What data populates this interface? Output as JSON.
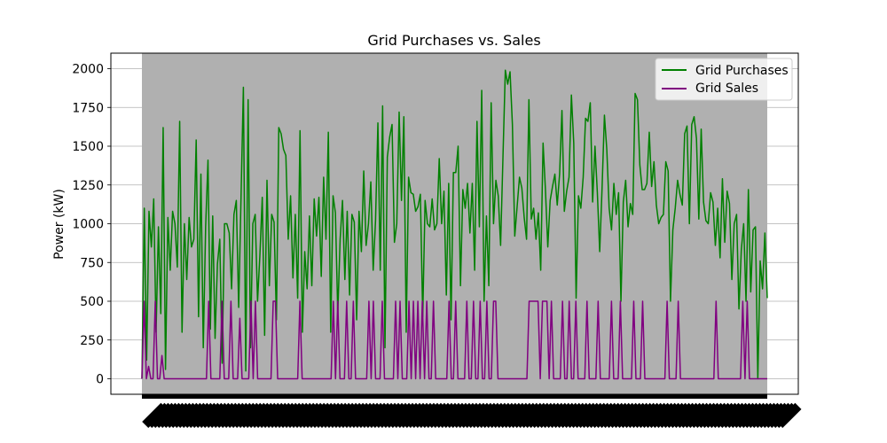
{
  "chart_data": {
    "type": "line",
    "title": "Grid Purchases vs. Sales",
    "xlabel": "",
    "ylabel": "Power (kW)",
    "ylim": [
      -100,
      2100
    ],
    "yticks": [
      0,
      250,
      500,
      750,
      1000,
      1250,
      1500,
      1750,
      2000
    ],
    "grid": true,
    "grid_axis": "y",
    "legend_position": "top-right",
    "x_ticks_dense": true,
    "series": [
      {
        "name": "Grid Purchases",
        "color": "#008000",
        "values": [
          0,
          1100,
          120,
          1080,
          850,
          1160,
          300,
          980,
          420,
          1620,
          60,
          1040,
          700,
          1080,
          1000,
          720,
          1660,
          300,
          1000,
          640,
          1040,
          850,
          900,
          1540,
          400,
          1320,
          200,
          980,
          1410,
          320,
          1050,
          260,
          740,
          900,
          100,
          1000,
          1000,
          940,
          580,
          1060,
          1150,
          460,
          1170,
          1880,
          50,
          1800,
          200,
          1000,
          1060,
          500,
          800,
          1170,
          280,
          1280,
          600,
          1060,
          1010,
          380,
          1620,
          1580,
          1480,
          1440,
          900,
          1180,
          650,
          1060,
          520,
          1600,
          300,
          820,
          580,
          1050,
          600,
          1160,
          920,
          1170,
          660,
          1300,
          900,
          1590,
          300,
          1180,
          1070,
          420,
          900,
          1150,
          640,
          1080,
          540,
          1060,
          1010,
          380,
          1080,
          820,
          1340,
          860,
          1000,
          1270,
          700,
          1020,
          1650,
          700,
          1760,
          200,
          1430,
          1560,
          1640,
          880,
          1000,
          1720,
          1150,
          1690,
          300,
          1300,
          1200,
          1190,
          1080,
          1110,
          1190,
          400,
          1150,
          1000,
          980,
          1160,
          960,
          1000,
          1420,
          1000,
          1210,
          540,
          1260,
          380,
          1330,
          1330,
          1500,
          600,
          1220,
          1100,
          1260,
          940,
          1260,
          700,
          1660,
          980,
          1860,
          500,
          1050,
          600,
          1780,
          1000,
          1280,
          1180,
          860,
          1430,
          1990,
          1900,
          1980,
          1640,
          920,
          1110,
          1300,
          1230,
          1040,
          900,
          1800,
          1030,
          1100,
          900,
          1070,
          700,
          1520,
          1220,
          850,
          1150,
          1240,
          1320,
          1120,
          1320,
          1730,
          1080,
          1210,
          1300,
          1830,
          1520,
          520,
          1180,
          1100,
          1300,
          1680,
          1660,
          1780,
          1140,
          1500,
          1200,
          820,
          1230,
          1700,
          1480,
          1100,
          960,
          1260,
          1060,
          1200,
          500,
          1140,
          1280,
          980,
          1130,
          1060,
          1840,
          1800,
          1380,
          1220,
          1220,
          1260,
          1590,
          1240,
          1400,
          1120,
          1000,
          1040,
          1060,
          1400,
          1340,
          500,
          960,
          1100,
          1280,
          1190,
          1120,
          1580,
          1630,
          1000,
          1640,
          1690,
          1550,
          1030,
          1610,
          1140,
          1020,
          1000,
          1200,
          1140,
          860,
          1100,
          780,
          1290,
          880,
          1210,
          1130,
          640,
          1000,
          1060,
          450,
          830,
          1000,
          500,
          1220,
          560,
          960,
          980,
          0,
          760,
          580,
          940,
          520
        ]
      },
      {
        "name": "Grid Sales",
        "color": "#800080",
        "values": [
          0,
          500,
          0,
          80,
          0,
          0,
          500,
          0,
          0,
          150,
          0,
          0,
          0,
          0,
          0,
          0,
          0,
          0,
          0,
          0,
          0,
          0,
          0,
          0,
          0,
          0,
          0,
          0,
          0,
          0,
          500,
          0,
          0,
          0,
          0,
          0,
          500,
          0,
          0,
          0,
          500,
          0,
          0,
          0,
          390,
          0,
          0,
          0,
          0,
          500,
          0,
          500,
          0,
          0,
          0,
          0,
          0,
          0,
          0,
          500,
          500,
          0,
          0,
          0,
          0,
          0,
          0,
          0,
          0,
          0,
          0,
          500,
          0,
          0,
          0,
          0,
          0,
          0,
          0,
          0,
          0,
          0,
          0,
          0,
          0,
          0,
          500,
          0,
          500,
          0,
          0,
          0,
          500,
          0,
          0,
          500,
          0,
          0,
          0,
          0,
          0,
          0,
          500,
          0,
          500,
          0,
          0,
          0,
          500,
          0,
          0,
          0,
          0,
          0,
          500,
          0,
          500,
          0,
          0,
          0,
          500,
          0,
          500,
          0,
          500,
          0,
          500,
          0,
          500,
          0,
          0,
          500,
          0,
          0,
          0,
          0,
          0,
          0,
          500,
          0,
          0,
          500,
          0,
          0,
          0,
          0,
          500,
          0,
          0,
          500,
          0,
          0,
          500,
          0,
          0,
          500,
          0,
          0,
          500,
          500,
          0,
          0,
          0,
          0,
          0,
          0,
          0,
          0,
          0,
          0,
          0,
          0,
          0,
          0,
          500,
          500,
          500,
          500,
          500,
          0,
          500,
          500,
          500,
          0,
          500,
          0,
          0,
          0,
          0,
          500,
          0,
          0,
          500,
          0,
          0,
          500,
          0,
          0,
          0,
          0,
          500,
          0,
          0,
          0,
          0,
          500,
          0,
          0,
          0,
          0,
          0,
          500,
          0,
          0,
          0,
          500,
          0,
          0,
          0,
          0,
          0,
          500,
          0,
          0,
          0,
          500,
          0,
          0,
          0,
          0,
          0,
          0,
          0,
          0,
          0,
          0,
          500,
          0,
          0,
          0,
          0,
          500,
          0,
          0,
          0,
          0,
          0,
          0,
          0,
          0,
          0,
          0,
          0,
          0,
          0,
          0,
          0,
          0,
          500,
          0,
          0,
          0,
          0,
          0,
          0,
          0,
          0,
          0,
          0,
          0,
          500,
          0,
          500,
          0,
          0,
          0,
          0,
          0,
          0,
          0,
          0,
          0
        ]
      }
    ]
  }
}
